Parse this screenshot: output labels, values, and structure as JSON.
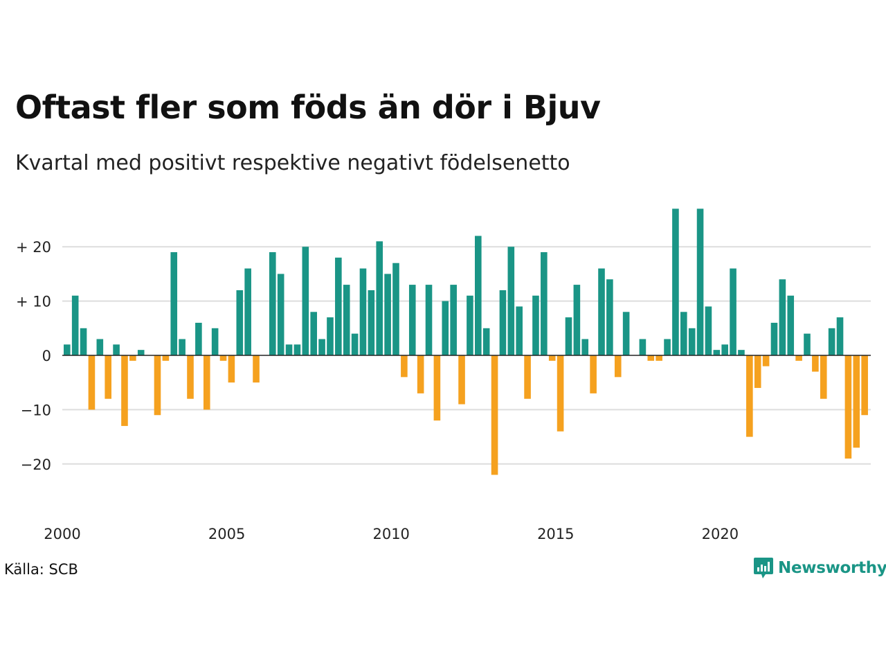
{
  "title": "Oftast fler som föds än dör i Bjuv",
  "subtitle": "Kvartal med positivt respektive negativt födelsenetto",
  "source": "Källa: SCB",
  "brand": {
    "name": "Newsworthy",
    "icon": "newsworthy-logo-icon"
  },
  "colors": {
    "positive": "#1a9586",
    "negative": "#f5a11f",
    "grid": "#dddddd",
    "text": "#222222"
  },
  "chart_data": {
    "type": "bar",
    "x_start": "2000 Q1",
    "ylim": [
      -25,
      30
    ],
    "y_ticks": [
      {
        "value": 20,
        "label": "+ 20"
      },
      {
        "value": 10,
        "label": "+ 10"
      },
      {
        "value": 0,
        "label": "0"
      },
      {
        "value": -10,
        "label": "−10"
      },
      {
        "value": -20,
        "label": "−20"
      }
    ],
    "x_ticks": [
      "2000",
      "2005",
      "2010",
      "2015",
      "2020"
    ],
    "grid": true,
    "values": [
      2,
      11,
      5,
      -10,
      3,
      -8,
      2,
      -13,
      -1,
      1,
      0,
      -11,
      -1,
      19,
      3,
      -8,
      6,
      -10,
      5,
      -1,
      -5,
      12,
      16,
      -5,
      0,
      19,
      15,
      2,
      2,
      20,
      8,
      3,
      7,
      18,
      13,
      4,
      16,
      12,
      21,
      15,
      17,
      -4,
      13,
      -7,
      13,
      -12,
      10,
      13,
      -9,
      11,
      22,
      5,
      -22,
      12,
      20,
      9,
      -8,
      11,
      19,
      -1,
      -14,
      7,
      13,
      3,
      -7,
      16,
      14,
      -4,
      8,
      0,
      3,
      -1,
      -1,
      3,
      27,
      8,
      5,
      27,
      9,
      1,
      2,
      16,
      1,
      -15,
      -6,
      -2,
      6,
      14,
      11,
      -1,
      4,
      -3,
      -8,
      5,
      7,
      -19,
      -17,
      -11
    ]
  }
}
